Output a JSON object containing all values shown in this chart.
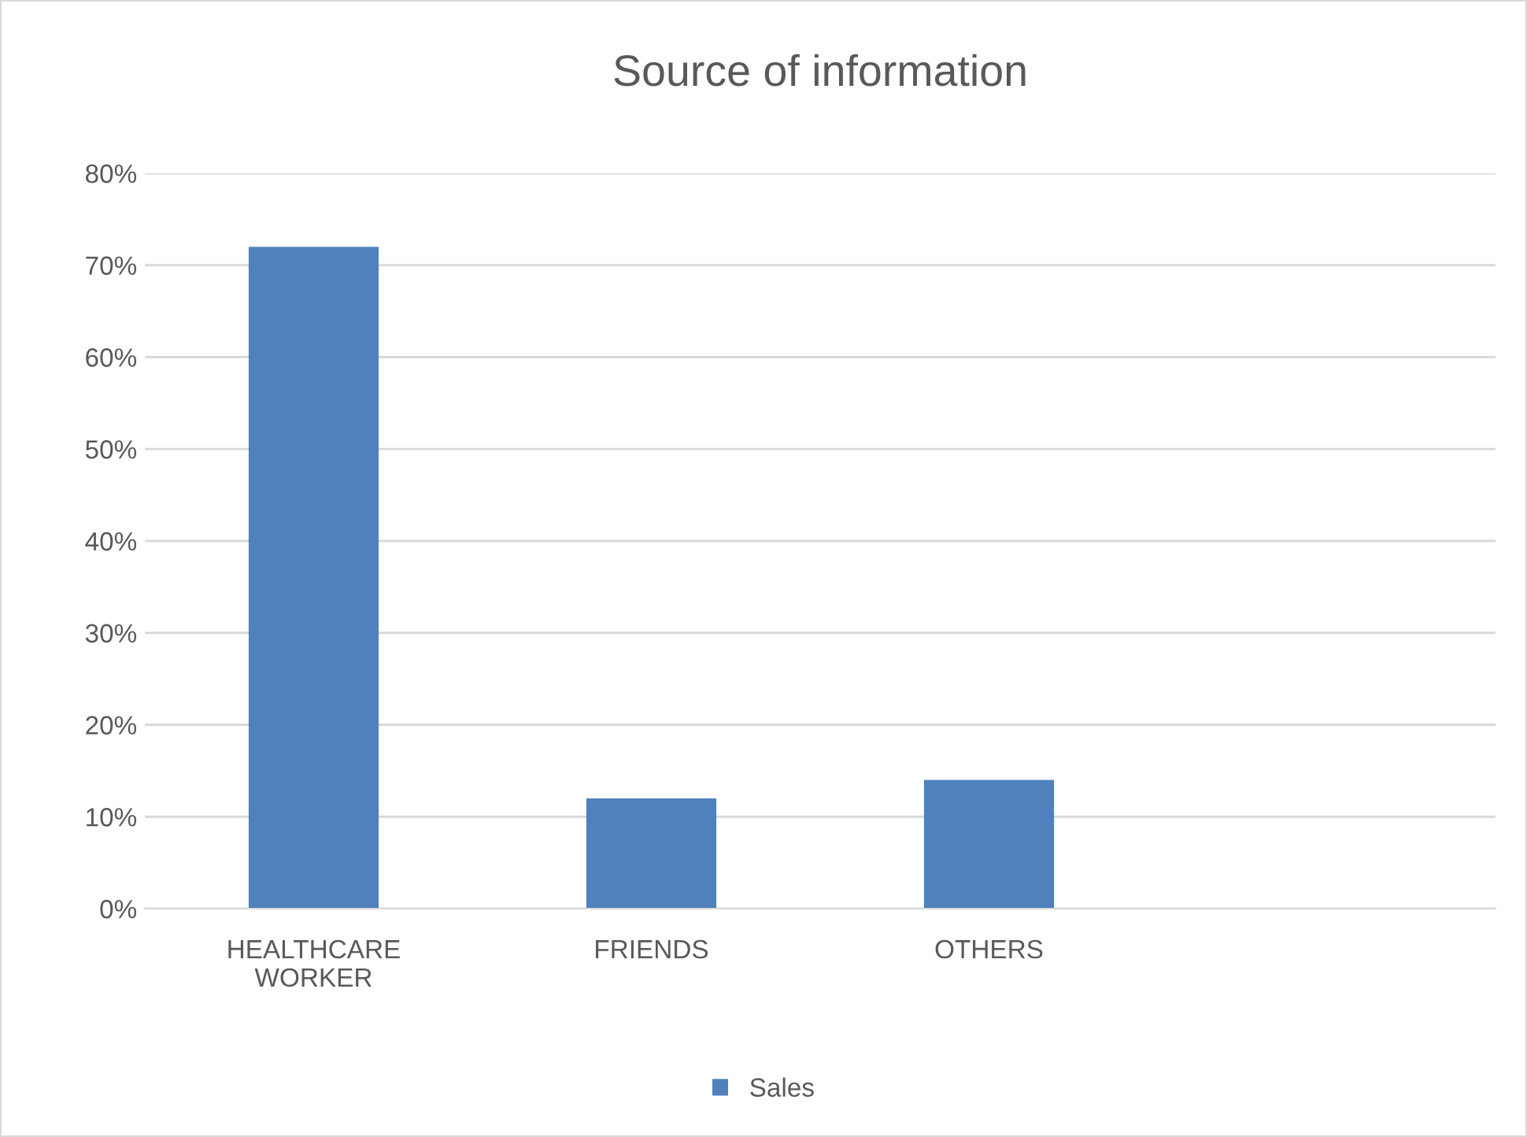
{
  "chart_data": {
    "type": "bar",
    "title": "Source of information",
    "categories": [
      "HEALTHCARE\nWORKER",
      "FRIENDS",
      "OTHERS",
      null
    ],
    "series": [
      {
        "name": "Sales",
        "color": "#4f81bd",
        "values": [
          72,
          12,
          14,
          null
        ]
      }
    ],
    "ylim": [
      0,
      80
    ],
    "yticks": [
      {
        "value": 0,
        "label": "0%"
      },
      {
        "value": 10,
        "label": "10%"
      },
      {
        "value": 20,
        "label": "20%"
      },
      {
        "value": 30,
        "label": "30%"
      },
      {
        "value": 40,
        "label": "40%"
      },
      {
        "value": 50,
        "label": "50%"
      },
      {
        "value": 60,
        "label": "60%"
      },
      {
        "value": 70,
        "label": "70%"
      },
      {
        "value": 80,
        "label": "80%"
      }
    ],
    "grid": "y",
    "legend": "bottom"
  }
}
